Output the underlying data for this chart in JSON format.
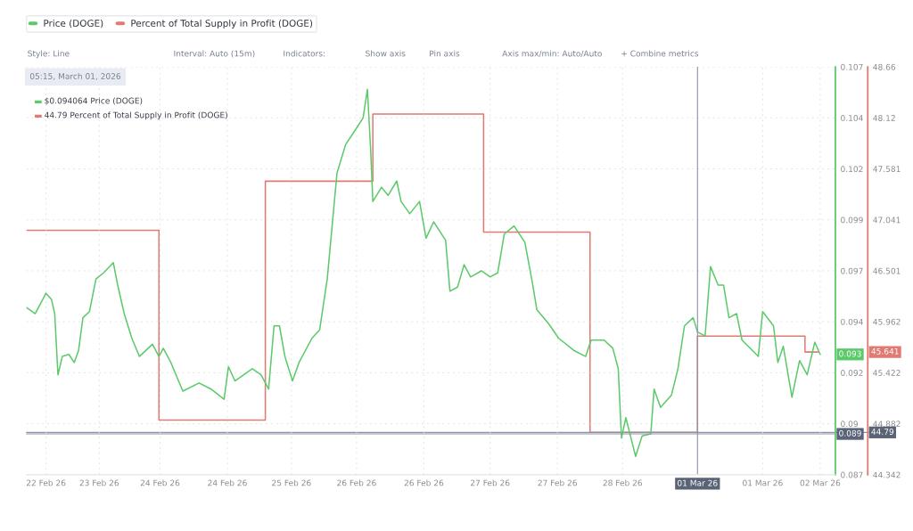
{
  "chart_data": {
    "type": "line",
    "x": [
      "2026-02-22T18:45",
      "2026-02-22T20:45",
      "2026-02-22T23:15",
      "2026-02-23T00:30",
      "2026-02-23T01:15",
      "2026-02-23T02:00",
      "2026-02-23T03:00",
      "2026-02-23T04:30",
      "2026-02-23T05:45",
      "2026-02-23T06:45",
      "2026-02-23T07:45",
      "2026-02-23T09:15",
      "2026-02-23T10:45",
      "2026-02-23T12:30",
      "2026-02-23T14:45",
      "2026-02-23T15:45",
      "2026-02-23T17:15",
      "2026-02-23T19:00",
      "2026-02-23T20:45",
      "2026-02-23T23:45",
      "2026-02-24T01:15",
      "2026-02-24T02:15",
      "2026-02-24T04:00",
      "2026-02-24T06:45",
      "2026-02-24T10:30",
      "2026-02-24T13:15",
      "2026-02-24T16:15",
      "2026-02-24T17:15",
      "2026-02-24T18:45",
      "2026-02-24T22:45",
      "2026-02-25T00:45",
      "2026-02-25T02:30",
      "2026-02-25T03:45",
      "2026-02-25T05:00",
      "2026-02-25T06:15",
      "2026-02-25T08:00",
      "2026-02-25T09:30",
      "2026-02-25T12:30",
      "2026-02-25T14:15",
      "2026-02-25T16:00",
      "2026-02-25T18:15",
      "2026-02-25T20:15",
      "2026-02-25T22:45",
      "2026-02-26T00:15",
      "2026-02-26T01:15",
      "2026-02-26T02:00",
      "2026-02-26T02:30",
      "2026-02-26T04:30",
      "2026-02-26T06:00",
      "2026-02-26T08:00",
      "2026-02-26T09:00",
      "2026-02-26T11:00",
      "2026-02-26T13:15",
      "2026-02-26T14:45",
      "2026-02-26T16:30",
      "2026-02-26T19:15",
      "2026-02-26T20:15",
      "2026-02-26T22:00",
      "2026-02-26T23:30",
      "2026-02-27T01:00",
      "2026-02-27T03:30",
      "2026-02-27T05:30",
      "2026-02-27T07:15",
      "2026-02-27T08:45",
      "2026-02-27T11:00",
      "2026-02-27T13:30",
      "2026-02-27T15:15",
      "2026-02-27T16:15",
      "2026-02-27T19:00",
      "2026-02-27T21:15",
      "2026-02-28T00:45",
      "2026-02-28T03:30",
      "2026-02-28T04:45",
      "2026-02-28T07:45",
      "2026-02-28T09:45",
      "2026-02-28T11:00",
      "2026-02-28T11:45",
      "2026-02-28T12:45",
      "2026-02-28T15:00",
      "2026-02-28T16:30",
      "2026-02-28T18:30",
      "2026-02-28T19:15",
      "2026-02-28T20:45",
      "2026-02-28T23:15",
      "2026-03-01T00:45",
      "2026-03-01T02:15",
      "2026-03-01T04:15",
      "2026-03-01T05:15",
      "2026-03-01T07:00",
      "2026-03-01T08:15",
      "2026-03-01T10:00",
      "2026-03-01T11:15",
      "2026-03-01T12:30",
      "2026-03-01T14:15",
      "2026-03-01T15:30",
      "2026-03-01T19:15",
      "2026-03-01T20:15",
      "2026-03-01T22:45",
      "2026-03-01T23:45",
      "2026-03-02T01:00",
      "2026-03-02T03:00",
      "2026-03-02T04:45",
      "2026-03-02T06:30",
      "2026-03-02T08:15",
      "2026-03-02T09:30"
    ],
    "series": [
      {
        "name": "Price (DOGE)",
        "color": "#5cc96a",
        "values": [
          0.0952,
          0.0949,
          0.0959,
          0.0956,
          0.0949,
          0.0919,
          0.0928,
          0.0929,
          0.0925,
          0.0931,
          0.0947,
          0.095,
          0.0966,
          0.0969,
          0.0974,
          0.0963,
          0.0949,
          0.0937,
          0.0928,
          0.0934,
          0.0928,
          0.0932,
          0.0925,
          0.0911,
          0.0915,
          0.0912,
          0.0907,
          0.0923,
          0.0916,
          0.0922,
          0.0919,
          0.0912,
          0.0943,
          0.0943,
          0.0928,
          0.0916,
          0.0925,
          0.0937,
          0.0941,
          0.0966,
          0.1018,
          0.1032,
          0.104,
          0.1045,
          0.1059,
          0.1029,
          0.1004,
          0.1011,
          0.1007,
          0.1014,
          0.1004,
          0.0998,
          0.1004,
          0.0986,
          0.0994,
          0.0985,
          0.096,
          0.0962,
          0.0973,
          0.0967,
          0.097,
          0.0967,
          0.0969,
          0.0988,
          0.0992,
          0.0984,
          0.0964,
          0.0951,
          0.0944,
          0.0937,
          0.0931,
          0.0928,
          0.0936,
          0.0936,
          0.0932,
          0.0922,
          0.0888,
          0.0898,
          0.0879,
          0.0889,
          0.089,
          0.0912,
          0.0903,
          0.0909,
          0.0922,
          0.0943,
          0.0947,
          0.094,
          0.0938,
          0.0972,
          0.0963,
          0.0963,
          0.0947,
          0.0949,
          0.0936,
          0.0928,
          0.095,
          0.0943,
          0.0925,
          0.0933,
          0.0908,
          0.0926,
          0.0919,
          0.0935,
          0.0929
        ]
      },
      {
        "name": "Percent of Total Supply in Profit (DOGE)",
        "color": "#e07a72",
        "type": "step",
        "axis": "y2",
        "x": [
          "2026-02-22T18:45",
          "2026-02-24T01:15",
          "2026-02-25T01:45",
          "2026-02-26T02:30",
          "2026-02-27T04:00",
          "2026-02-28T04:30",
          "2026-03-01T05:15",
          "2026-03-02T06:00",
          "2026-03-02T09:00"
        ],
        "values": [
          46.93,
          44.92,
          47.45,
          48.16,
          46.91,
          44.79,
          45.81,
          45.641,
          45.641
        ]
      }
    ],
    "xlim": [
      "2026-02-22T18:45",
      "2026-03-02T13:00"
    ],
    "xticks": [
      {
        "value": "2026-02-22T23:15",
        "label": "22 Feb 26"
      },
      {
        "value": "2026-02-23T11:30",
        "label": "23 Feb 26"
      },
      {
        "value": "2026-02-24T01:30",
        "label": "24 Feb 26"
      },
      {
        "value": "2026-02-24T17:00",
        "label": "24 Feb 26"
      },
      {
        "value": "2026-02-25T07:45",
        "label": "25 Feb 26"
      },
      {
        "value": "2026-02-25T22:45",
        "label": "26 Feb 26"
      },
      {
        "value": "2026-02-26T14:15",
        "label": "26 Feb 26"
      },
      {
        "value": "2026-02-27T05:30",
        "label": "27 Feb 26"
      },
      {
        "value": "2026-02-27T21:00",
        "label": "27 Feb 26"
      },
      {
        "value": "2026-02-28T12:00",
        "label": "28 Feb 26"
      },
      {
        "value": "2026-03-01T20:15",
        "label": "01 Mar 26"
      },
      {
        "value": "2026-03-02T09:30",
        "label": "02 Mar 26"
      }
    ],
    "ylim": [
      0.087,
      0.107
    ],
    "yticks": [
      0.087,
      {
        "value": 0.0895,
        "label": "0.09"
      },
      0.092,
      {
        "value": 0.0945,
        "label": "0.094"
      },
      0.097,
      {
        "value": 0.0995,
        "label": "0.099"
      },
      0.102,
      {
        "value": 0.1045,
        "label": "0.104"
      },
      0.107
    ],
    "y2lim": [
      44.342,
      48.66
    ],
    "y2ticks": [
      44.342,
      44.882,
      45.422,
      45.962,
      46.501,
      47.041,
      47.581,
      48.12,
      48.66
    ],
    "ref_lines": [
      {
        "axis": "x",
        "value": "2026-03-01T05:15",
        "label": "01 Mar 26",
        "color": "#8a93a6"
      },
      {
        "axis": "y",
        "value": 0.089,
        "label": "0.089",
        "color": "#8a93a6"
      },
      {
        "axis": "y2",
        "value": 44.79,
        "label": "44.79",
        "color": "#8a93a6"
      }
    ],
    "annotations": [
      "Style: Line",
      "Interval: Auto (15m)",
      "Indicators:",
      "Show axis",
      "Pin axis",
      "Axis max/min: Auto/Auto",
      "+ Combine metrics",
      "05:15, March 01, 2026",
      "$0.094064 Price (DOGE)",
      "44.79 Percent of Total Supply in Profit (DOGE)",
      "0.093",
      "45.641"
    ],
    "grid": true,
    "legend": "top left",
    "marker": "none",
    "line_style": "solid"
  }
}
